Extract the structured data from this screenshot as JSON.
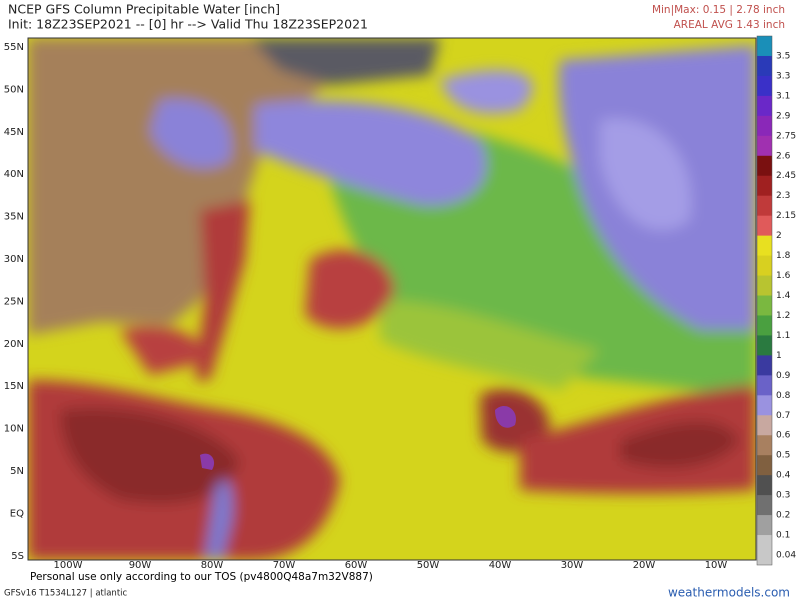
{
  "header": {
    "title": "NCEP GFS Column Precipitable Water [inch]",
    "subtitle": "Init: 18Z23SEP2021 -- [0] hr --> Valid Thu 18Z23SEP2021",
    "minmax": "Min|Max: 0.15 | 2.78 inch",
    "areal_avg": "AREAL AVG 1.43 inch"
  },
  "map": {
    "lat_labels": [
      "55N",
      "50N",
      "45N",
      "40N",
      "35N",
      "30N",
      "25N",
      "20N",
      "15N",
      "10N",
      "5N",
      "EQ",
      "5S"
    ],
    "lon_labels": [
      "100W",
      "90W",
      "80W",
      "70W",
      "60W",
      "50W",
      "40W",
      "30W",
      "20W",
      "10W"
    ]
  },
  "colorbar": {
    "labels": [
      "3.5",
      "3.3",
      "3.1",
      "2.9",
      "2.75",
      "2.6",
      "2.45",
      "2.3",
      "2.15",
      "2",
      "1.8",
      "1.6",
      "1.4",
      "1.2",
      "1.1",
      "1",
      "0.9",
      "0.8",
      "0.7",
      "0.6",
      "0.5",
      "0.4",
      "0.3",
      "0.2",
      "0.1",
      "0.04"
    ]
  },
  "footer": {
    "tos": "Personal use only according to our TOS (pv4800Q48a7m32V887)",
    "model": "GFSv16 T1534L127 | atlantic",
    "brand": "weathermodels.com"
  }
}
